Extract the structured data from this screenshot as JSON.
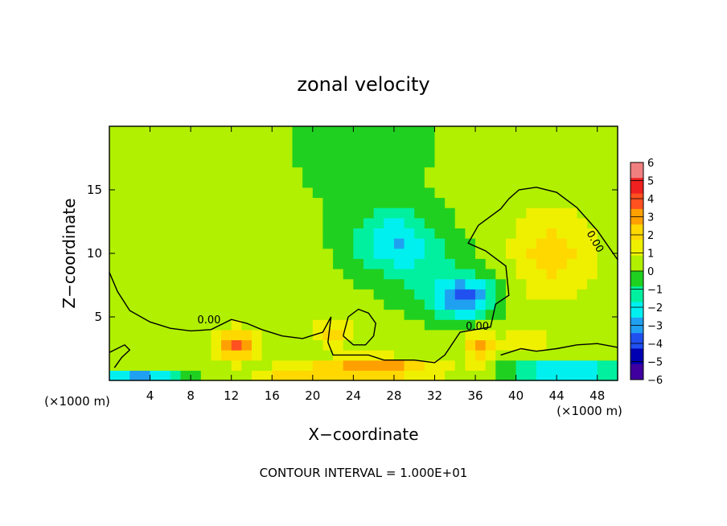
{
  "chart_data": {
    "type": "heatmap",
    "title": "zonal velocity",
    "xlabel": "X−coordinate",
    "ylabel": "Z−coordinate",
    "x_unit_left": "(×1000 m)",
    "x_unit_right": "(×1000 m)",
    "footer": "CONTOUR INTERVAL = 1.000E+01",
    "xlim": [
      0,
      50
    ],
    "ylim": [
      0,
      20
    ],
    "x_ticks": [
      4,
      8,
      12,
      16,
      20,
      24,
      28,
      32,
      36,
      40,
      44,
      48
    ],
    "x_tick_labels": [
      "4",
      "8",
      "12",
      "16",
      "20",
      "24",
      "28",
      "32",
      "36",
      "40",
      "44",
      "48"
    ],
    "y_ticks": [
      5,
      10,
      15
    ],
    "y_tick_labels": [
      "5",
      "10",
      "15"
    ],
    "colorbar": {
      "levels": [
        6,
        5,
        4,
        3,
        2,
        1,
        0,
        -1,
        -2,
        -3,
        -4,
        -5,
        -6
      ],
      "labels": [
        "6",
        "5",
        "4",
        "3",
        "2",
        "1",
        "0",
        "−1",
        "−2",
        "−3",
        "−4",
        "−5",
        "−6"
      ],
      "colors": [
        "#f08080",
        "#ee2020",
        "#ff5020",
        "#ffa000",
        "#ffd800",
        "#eef000",
        "#b0f000",
        "#20d020",
        "#00f0a0",
        "#00f0f0",
        "#20a0f0",
        "#2050f0",
        "#0000b0",
        "#4000a0"
      ]
    },
    "contour_labels": [
      "0.00",
      "0.00",
      "0.00"
    ],
    "contour_label_positions": [
      [
        9.8,
        4.5
      ],
      [
        36.2,
        4.0
      ],
      [
        47.5,
        10.8
      ]
    ],
    "zero_contours": [
      [
        [
          0,
          8.5
        ],
        [
          0.8,
          7.0
        ],
        [
          2.0,
          5.5
        ],
        [
          4.0,
          4.6
        ],
        [
          6.0,
          4.1
        ],
        [
          8.0,
          3.9
        ],
        [
          10.0,
          4.0
        ],
        [
          12.0,
          4.8
        ],
        [
          13.5,
          4.5
        ],
        [
          15.0,
          4.0
        ],
        [
          17.0,
          3.5
        ],
        [
          19.0,
          3.3
        ],
        [
          21.0,
          3.8
        ],
        [
          21.8,
          5.0
        ],
        [
          21.5,
          3.0
        ],
        [
          22.0,
          2.0
        ],
        [
          24.0,
          2.0
        ],
        [
          25.5,
          2.0
        ],
        [
          27.0,
          1.6
        ],
        [
          30.0,
          1.6
        ],
        [
          32.0,
          1.4
        ],
        [
          33.0,
          2.0
        ],
        [
          34.5,
          3.8
        ],
        [
          36.0,
          4.0
        ],
        [
          37.5,
          4.2
        ],
        [
          38.0,
          6.0
        ],
        [
          39.3,
          6.7
        ],
        [
          39.0,
          9.0
        ],
        [
          37.0,
          10.2
        ],
        [
          35.3,
          10.8
        ],
        [
          36.3,
          12.2
        ],
        [
          37.3,
          12.8
        ],
        [
          38.5,
          13.5
        ],
        [
          39.3,
          14.3
        ],
        [
          40.3,
          15.0
        ],
        [
          42.0,
          15.2
        ],
        [
          44.0,
          14.8
        ],
        [
          46.0,
          13.6
        ],
        [
          48.0,
          11.8
        ],
        [
          50.0,
          9.5
        ]
      ],
      [
        [
          0,
          2.2
        ],
        [
          1.5,
          2.8
        ],
        [
          2.0,
          2.4
        ],
        [
          1.2,
          1.8
        ],
        [
          0.5,
          1.0
        ]
      ],
      [
        [
          23.0,
          3.5
        ],
        [
          23.5,
          5.0
        ],
        [
          24.5,
          5.6
        ],
        [
          25.5,
          5.3
        ],
        [
          26.2,
          4.5
        ],
        [
          26.0,
          3.5
        ],
        [
          25.2,
          2.8
        ],
        [
          24.0,
          2.8
        ],
        [
          23.0,
          3.5
        ]
      ],
      [
        [
          38.5,
          2.0
        ],
        [
          40.5,
          2.5
        ],
        [
          42.0,
          2.3
        ],
        [
          44.0,
          2.5
        ],
        [
          46.0,
          2.8
        ],
        [
          48.0,
          2.9
        ],
        [
          50.0,
          2.6
        ]
      ]
    ],
    "field_features": [
      {
        "x": 25,
        "z": 20,
        "sx": 8,
        "sz": 8,
        "amp": -0.9
      },
      {
        "x": 28,
        "z": 11,
        "sx": 4,
        "sz": 2.5,
        "amp": -3.0
      },
      {
        "x": 35,
        "z": 6.5,
        "sx": 3,
        "sz": 1.6,
        "amp": -4.2
      },
      {
        "x": 32,
        "z": 8,
        "sx": 5,
        "sz": 3,
        "amp": -1.2
      },
      {
        "x": 43.5,
        "z": 10,
        "sx": 4,
        "sz": 3.5,
        "amp": 2.1
      },
      {
        "x": 12.5,
        "z": 2.8,
        "sx": 1.8,
        "sz": 1.2,
        "amp": 3.8
      },
      {
        "x": 36.5,
        "z": 2.6,
        "sx": 1.4,
        "sz": 1.2,
        "amp": 3.2
      },
      {
        "x": 26,
        "z": 1,
        "sx": 6,
        "sz": 0.8,
        "amp": 3.5
      },
      {
        "x": 18,
        "z": 0.6,
        "sx": 3,
        "sz": 0.5,
        "amp": 2.5
      },
      {
        "x": 45,
        "z": 0.8,
        "sx": 5,
        "sz": 0.7,
        "amp": -4.5
      },
      {
        "x": 3,
        "z": 0.3,
        "sx": 4,
        "sz": 0.3,
        "amp": -4.0
      },
      {
        "x": 41,
        "z": 3.3,
        "sx": 2,
        "sz": 1,
        "amp": 1.5
      },
      {
        "x": 22,
        "z": 3.8,
        "sx": 2,
        "sz": 1.2,
        "amp": 1.8
      }
    ]
  }
}
